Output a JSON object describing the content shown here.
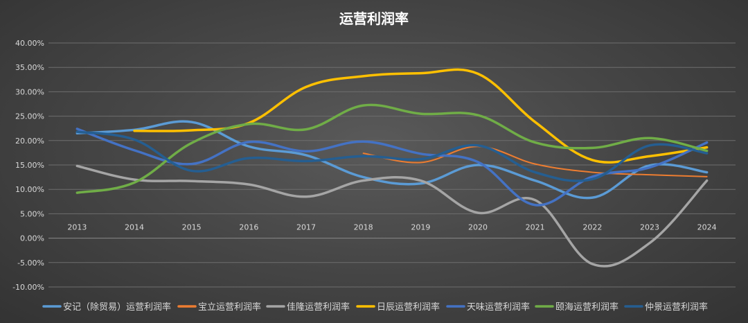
{
  "chart_data": {
    "type": "line",
    "title": "运营利润率",
    "xlabel": "",
    "ylabel": "",
    "ylim": [
      -10,
      40
    ],
    "y_ticks": [
      40,
      35,
      30,
      25,
      20,
      15,
      10,
      5,
      0,
      -5,
      -10
    ],
    "y_tick_labels": [
      "40.00%",
      "35.00%",
      "30.00%",
      "25.00%",
      "20.00%",
      "15.00%",
      "10.00%",
      "5.00%",
      "0.00%",
      "-5.00%",
      "-10.00%"
    ],
    "x": [
      "2013",
      "2014",
      "2015",
      "2016",
      "2017",
      "2018",
      "2019",
      "2020",
      "2021",
      "2022",
      "2023",
      "2024"
    ],
    "grid": true,
    "legend_position": "bottom",
    "series": [
      {
        "name": "安记（除贸易）运营利润率",
        "color": "#5b9bd5",
        "values": [
          21.5,
          22.2,
          23.8,
          18.8,
          17.0,
          12.5,
          11.2,
          15.0,
          11.8,
          8.3,
          14.9,
          13.5
        ]
      },
      {
        "name": "宝立运营利润率",
        "color": "#ed7d31",
        "values": [
          null,
          null,
          null,
          null,
          null,
          17.4,
          15.5,
          18.8,
          15.2,
          13.5,
          13.0,
          12.6
        ]
      },
      {
        "name": "佳隆运营利润率",
        "color": "#a5a5a5",
        "values": [
          14.8,
          12.0,
          11.7,
          11.0,
          8.5,
          11.8,
          11.8,
          5.2,
          7.8,
          -5.3,
          -1.0,
          11.8
        ]
      },
      {
        "name": "日辰运营利润率",
        "color": "#ffc000",
        "values": [
          null,
          22.0,
          22.1,
          23.6,
          31.0,
          33.2,
          33.8,
          33.7,
          23.8,
          16.0,
          16.8,
          18.6
        ]
      },
      {
        "name": "天味运营利润率",
        "color": "#4472c4",
        "values": [
          22.4,
          18.0,
          15.2,
          19.7,
          17.8,
          19.8,
          17.3,
          15.6,
          6.8,
          12.6,
          14.5,
          19.6
        ]
      },
      {
        "name": "颐海运营利润率",
        "color": "#70ad47",
        "values": [
          9.3,
          11.4,
          19.5,
          23.4,
          22.3,
          27.2,
          25.5,
          25.2,
          19.6,
          18.5,
          20.5,
          17.9
        ]
      },
      {
        "name": "仲景运营利润率",
        "color": "#255e91",
        "values": [
          21.8,
          20.2,
          13.8,
          16.4,
          15.8,
          16.8,
          16.2,
          19.0,
          13.5,
          12.1,
          19.0,
          17.4
        ]
      }
    ]
  }
}
